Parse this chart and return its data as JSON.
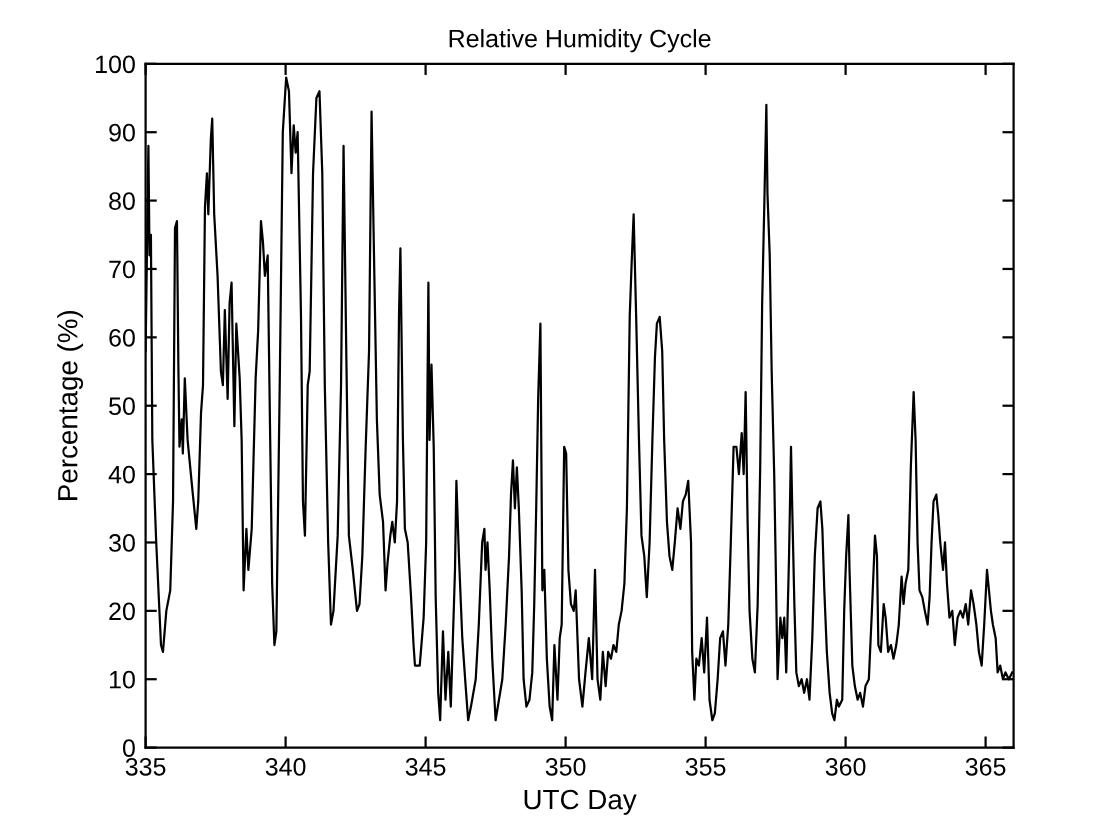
{
  "chart_data": {
    "type": "line",
    "title": "Relative Humidity Cycle",
    "xlabel": "UTC Day",
    "ylabel": "Percentage (%)",
    "xlim": [
      335,
      366
    ],
    "xticks": [
      335,
      340,
      345,
      350,
      355,
      360,
      365
    ],
    "ylim": [
      0,
      100
    ],
    "yticks": [
      0,
      10,
      20,
      30,
      40,
      50,
      60,
      70,
      80,
      90,
      100
    ],
    "marker": "none",
    "line_style": "solid",
    "x": [
      335.0,
      335.1,
      335.14,
      335.19,
      335.24,
      335.38,
      335.55,
      335.62,
      335.74,
      335.88,
      335.98,
      336.05,
      336.12,
      336.17,
      336.21,
      336.29,
      336.33,
      336.4,
      336.5,
      336.64,
      336.81,
      336.88,
      336.98,
      337.05,
      337.12,
      337.19,
      337.24,
      337.33,
      337.38,
      337.45,
      337.57,
      337.69,
      337.76,
      337.83,
      337.93,
      338.0,
      338.07,
      338.17,
      338.24,
      338.36,
      338.43,
      338.5,
      338.6,
      338.67,
      338.79,
      338.93,
      339.02,
      339.12,
      339.19,
      339.26,
      339.36,
      339.45,
      339.52,
      339.6,
      339.67,
      339.79,
      339.9,
      340.02,
      340.12,
      340.21,
      340.29,
      340.36,
      340.43,
      340.55,
      340.62,
      340.69,
      340.79,
      340.86,
      340.98,
      341.1,
      341.21,
      341.31,
      341.4,
      341.52,
      341.62,
      341.71,
      341.86,
      341.98,
      342.07,
      342.17,
      342.26,
      342.4,
      342.55,
      342.64,
      342.74,
      342.86,
      342.98,
      343.07,
      343.17,
      343.26,
      343.36,
      343.48,
      343.57,
      343.64,
      343.74,
      343.81,
      343.9,
      343.98,
      344.05,
      344.1,
      344.19,
      344.26,
      344.36,
      344.48,
      344.57,
      344.62,
      344.79,
      344.93,
      345.02,
      345.1,
      345.14,
      345.21,
      345.29,
      345.36,
      345.45,
      345.52,
      345.62,
      345.71,
      345.81,
      345.9,
      346.05,
      346.1,
      346.19,
      346.31,
      346.43,
      346.52,
      346.62,
      346.79,
      346.9,
      347.02,
      347.1,
      347.14,
      347.21,
      347.29,
      347.38,
      347.5,
      347.62,
      347.74,
      347.86,
      347.98,
      348.05,
      348.12,
      348.19,
      348.26,
      348.33,
      348.43,
      348.5,
      348.6,
      348.71,
      348.81,
      348.88,
      348.95,
      349.02,
      349.1,
      349.17,
      349.24,
      349.33,
      349.43,
      349.52,
      349.6,
      349.71,
      349.79,
      349.86,
      349.95,
      350.02,
      350.1,
      350.19,
      350.29,
      350.36,
      350.48,
      350.6,
      350.71,
      350.83,
      350.95,
      351.05,
      351.14,
      351.24,
      351.33,
      351.43,
      351.52,
      351.62,
      351.71,
      351.81,
      351.9,
      352.0,
      352.1,
      352.19,
      352.29,
      352.36,
      352.43,
      352.52,
      352.62,
      352.71,
      352.81,
      352.9,
      353.0,
      353.1,
      353.19,
      353.26,
      353.36,
      353.45,
      353.52,
      353.62,
      353.71,
      353.81,
      353.9,
      354.0,
      354.1,
      354.19,
      354.29,
      354.38,
      354.48,
      354.52,
      354.6,
      354.67,
      354.76,
      354.86,
      354.95,
      355.05,
      355.14,
      355.24,
      355.33,
      355.43,
      355.52,
      355.62,
      355.71,
      355.81,
      355.9,
      356.0,
      356.1,
      356.19,
      356.29,
      356.36,
      356.43,
      356.5,
      356.57,
      356.67,
      356.76,
      356.86,
      356.95,
      357.02,
      357.1,
      357.17,
      357.21,
      357.29,
      357.36,
      357.45,
      357.5,
      357.57,
      357.67,
      357.74,
      357.81,
      357.88,
      357.98,
      358.05,
      358.1,
      358.17,
      358.24,
      358.33,
      358.43,
      358.52,
      358.62,
      358.71,
      358.81,
      358.9,
      359.0,
      359.1,
      359.17,
      359.24,
      359.33,
      359.43,
      359.52,
      359.6,
      359.69,
      359.76,
      359.88,
      359.95,
      360.02,
      360.1,
      360.14,
      360.24,
      360.33,
      360.43,
      360.52,
      360.62,
      360.71,
      360.83,
      360.95,
      361.05,
      361.12,
      361.17,
      361.26,
      361.36,
      361.43,
      361.52,
      361.62,
      361.71,
      361.81,
      361.9,
      362.0,
      362.07,
      362.14,
      362.24,
      362.33,
      362.43,
      362.5,
      362.57,
      362.64,
      362.74,
      362.83,
      362.93,
      363.0,
      363.07,
      363.14,
      363.24,
      363.31,
      363.38,
      363.48,
      363.55,
      363.62,
      363.71,
      363.81,
      363.9,
      364.0,
      364.1,
      364.19,
      364.29,
      364.38,
      364.48,
      364.57,
      364.67,
      364.76,
      364.86,
      364.95,
      365.05,
      365.12,
      365.19,
      365.26,
      365.36,
      365.43,
      365.52,
      365.62,
      365.71,
      365.83,
      365.95
    ],
    "series": [
      {
        "color": "#000000",
        "values": [
          58,
          88,
          72,
          75,
          45,
          30,
          15,
          14,
          20,
          23,
          36,
          76,
          77,
          56,
          44,
          48,
          43,
          54,
          45,
          39,
          32,
          36,
          49,
          53,
          79,
          84,
          78,
          89,
          92,
          78,
          69,
          55,
          53,
          64,
          51,
          65,
          68,
          47,
          62,
          54,
          45,
          23,
          32,
          26,
          32,
          54,
          61,
          77,
          74,
          69,
          72,
          45,
          24,
          15,
          17,
          53,
          90,
          98,
          96,
          84,
          91,
          87,
          90,
          63,
          36,
          31,
          53,
          55,
          84,
          95,
          96,
          84,
          53,
          30,
          18,
          20,
          31,
          53,
          88,
          57,
          31,
          26,
          20,
          21,
          28,
          44,
          58,
          93,
          69,
          48,
          37,
          33,
          23,
          27,
          31,
          33,
          30,
          36,
          63,
          73,
          45,
          32,
          30,
          22,
          15,
          12,
          12,
          19,
          30,
          68,
          45,
          56,
          44,
          22,
          8,
          4,
          17,
          7,
          14,
          6,
          26,
          39,
          28,
          16,
          9,
          4,
          6,
          10,
          18,
          30,
          32,
          26,
          30,
          23,
          13,
          4,
          7,
          10,
          18,
          28,
          37,
          42,
          35,
          41,
          35,
          23,
          10,
          6,
          7,
          11,
          21,
          35,
          51,
          62,
          23,
          26,
          13,
          6,
          4,
          15,
          7,
          16,
          18,
          44,
          43,
          26,
          21,
          20,
          23,
          10,
          6,
          11,
          16,
          10,
          26,
          10,
          7,
          14,
          9,
          14,
          13,
          15,
          14,
          18,
          20,
          24,
          35,
          63,
          71,
          78,
          63,
          45,
          31,
          28,
          22,
          30,
          45,
          57,
          62,
          63,
          58,
          45,
          33,
          28,
          26,
          30,
          35,
          32,
          36,
          37,
          39,
          30,
          14,
          7,
          13,
          12,
          16,
          11,
          19,
          7,
          4,
          5,
          10,
          16,
          17,
          12,
          18,
          30,
          44,
          44,
          40,
          46,
          40,
          52,
          33,
          20,
          13,
          11,
          21,
          41,
          65,
          80,
          94,
          81,
          72,
          55,
          40,
          28,
          10,
          19,
          16,
          19,
          11,
          28,
          44,
          34,
          21,
          11,
          9,
          10,
          8,
          10,
          7,
          16,
          28,
          35,
          36,
          32,
          23,
          14,
          8,
          5,
          4,
          7,
          6,
          7,
          20,
          28,
          34,
          26,
          12,
          9,
          7,
          8,
          6,
          9,
          10,
          21,
          31,
          28,
          15,
          14,
          21,
          19,
          14,
          15,
          13,
          15,
          18,
          25,
          21,
          24,
          26,
          41,
          52,
          45,
          30,
          23,
          22,
          20,
          18,
          22,
          30,
          36,
          37,
          34,
          30,
          26,
          30,
          24,
          19,
          20,
          15,
          19,
          20,
          19,
          21,
          18,
          23,
          21,
          18,
          14,
          12,
          18,
          26,
          23,
          20,
          18,
          16,
          11,
          12,
          10,
          11,
          10,
          11
        ]
      }
    ]
  }
}
